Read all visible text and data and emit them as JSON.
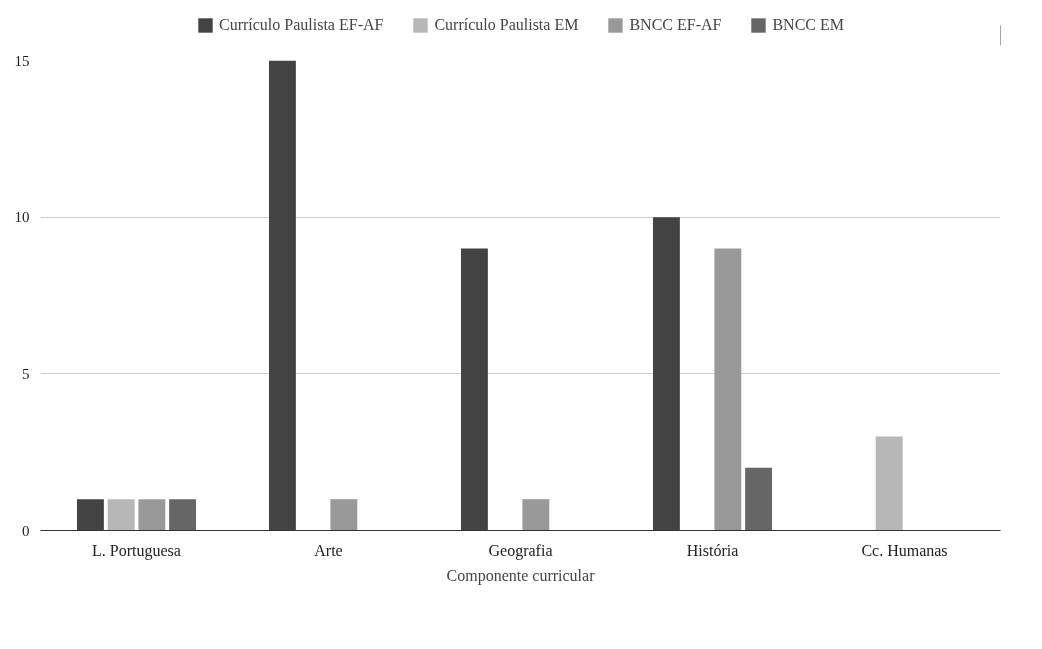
{
  "chart_data": {
    "type": "bar",
    "xlabel": "Componente curricular",
    "categories": [
      "L. Portuguesa",
      "Arte",
      "Geografia",
      "História",
      "Cc. Humanas"
    ],
    "series": [
      {
        "name": "Currículo Paulista EF-AF",
        "color": "#434343",
        "values": [
          1,
          15,
          9,
          10,
          null
        ]
      },
      {
        "name": "Currículo Paulista EM",
        "color": "#b7b7b7",
        "values": [
          1,
          null,
          null,
          null,
          3
        ]
      },
      {
        "name": "BNCC EF-AF",
        "color": "#999999",
        "values": [
          1,
          1,
          1,
          9,
          null
        ]
      },
      {
        "name": "BNCC EM",
        "color": "#666666",
        "values": [
          1,
          null,
          null,
          2,
          null
        ]
      }
    ],
    "ylim": [
      0,
      15
    ],
    "yticks": [
      0,
      5,
      10,
      15
    ],
    "grid": "y",
    "legend": "top"
  }
}
